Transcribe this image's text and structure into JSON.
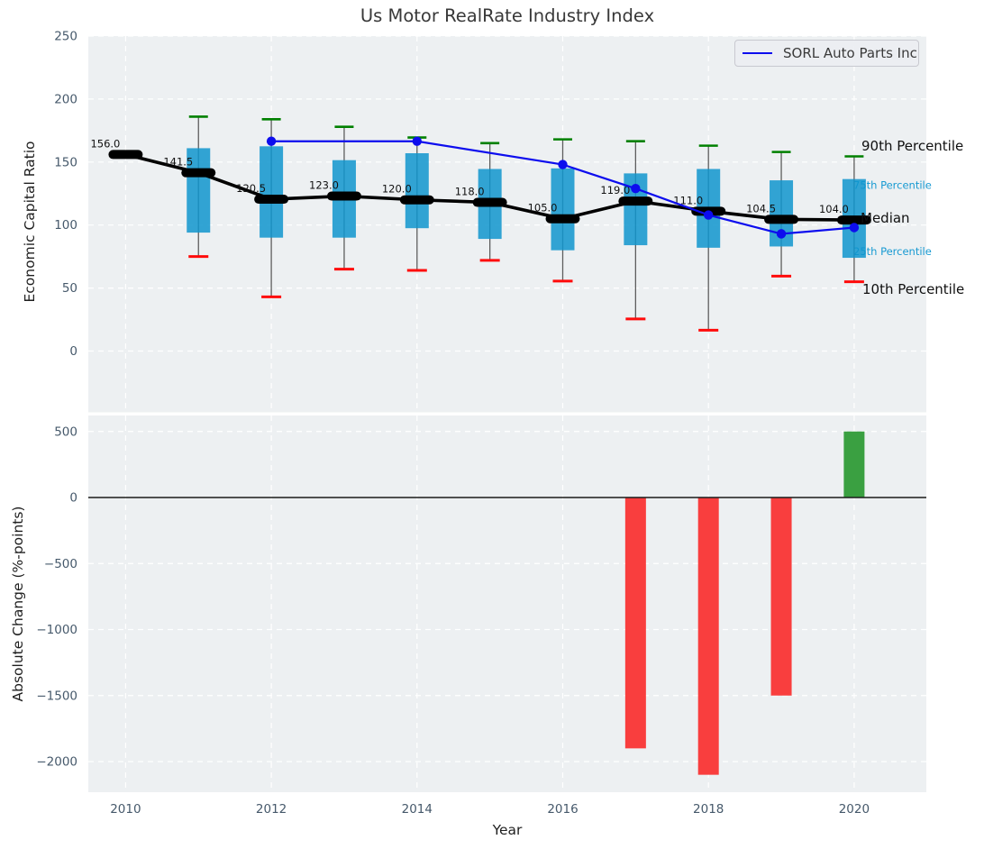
{
  "title": "Us Motor RealRate Industry Index",
  "legend": {
    "label": "SORL Auto Parts Inc"
  },
  "annotations": {
    "p90": "90th Percentile",
    "p75": "75th Percentile",
    "median": "Median",
    "p25": "25th Percentile",
    "p10": "10th Percentile"
  },
  "colors": {
    "plot_bg": "#edf0f2",
    "grid": "#ffffff",
    "box_fill": "#0f95ce",
    "whisker": "#5e5e5e",
    "cap_top": "#008000",
    "cap_bottom": "#ff0b0b",
    "median_line": "#000000",
    "company_line": "#0d0dee",
    "bar_negative": "#f93e3e",
    "bar_positive": "#3aa041",
    "zero_line": "#1a1a1a",
    "tick_label": "#46596b",
    "teal_annotation": "#189ad2",
    "median_value_label": "#111111"
  },
  "chart_data": [
    {
      "type": "boxplot+line",
      "title": "Us Motor RealRate Industry Index",
      "xlabel": "Year",
      "ylabel": "Economic Capital Ratio",
      "x": [
        2010,
        2011,
        2012,
        2013,
        2014,
        2015,
        2016,
        2017,
        2018,
        2019,
        2020
      ],
      "xticks": [
        2010,
        2012,
        2014,
        2016,
        2018,
        2020
      ],
      "yticks": [
        250,
        200,
        150,
        100,
        50,
        0
      ],
      "ylim": [
        -48,
        251
      ],
      "grid": true,
      "legend_position": "upper right",
      "median": [
        156.0,
        141.5,
        120.5,
        123.0,
        120.0,
        118.0,
        105.0,
        119.0,
        111.0,
        104.5,
        104.0
      ],
      "median_labels": [
        "156.0",
        "141.5",
        "120.5",
        "123.0",
        "120.0",
        "118.0",
        "105.0",
        "119.0",
        "111.0",
        "104.5",
        "104.0"
      ],
      "p90": [
        null,
        186,
        184,
        178,
        169.5,
        165,
        168,
        166.5,
        163,
        158,
        154.5
      ],
      "p75": [
        null,
        161,
        162.5,
        151.5,
        157,
        144.5,
        145,
        141,
        144.5,
        135.5,
        136.5
      ],
      "p25": [
        null,
        94,
        90,
        90,
        97.5,
        89,
        80,
        84,
        82,
        83,
        74
      ],
      "p10": [
        null,
        75,
        43,
        65,
        64,
        72,
        55.5,
        25.5,
        16.5,
        59.5,
        55
      ],
      "series": [
        {
          "name": "SORL Auto Parts Inc",
          "x": [
            2012,
            2014,
            2016,
            2017,
            2018,
            2019,
            2020
          ],
          "values": [
            166.5,
            166.5,
            148,
            129,
            108,
            93,
            98
          ]
        }
      ]
    },
    {
      "type": "bar",
      "xlabel": "Year",
      "ylabel": "Absolute Change (%-points)",
      "x": [
        2017,
        2018,
        2019,
        2020
      ],
      "values": [
        -1900,
        -2100,
        -1500,
        500
      ],
      "xticks": [
        2010,
        2012,
        2014,
        2016,
        2018,
        2020
      ],
      "yticks": [
        500,
        0,
        -500,
        -1000,
        -1500,
        -2000
      ],
      "ylim": [
        -2230,
        620
      ],
      "grid": true
    }
  ]
}
